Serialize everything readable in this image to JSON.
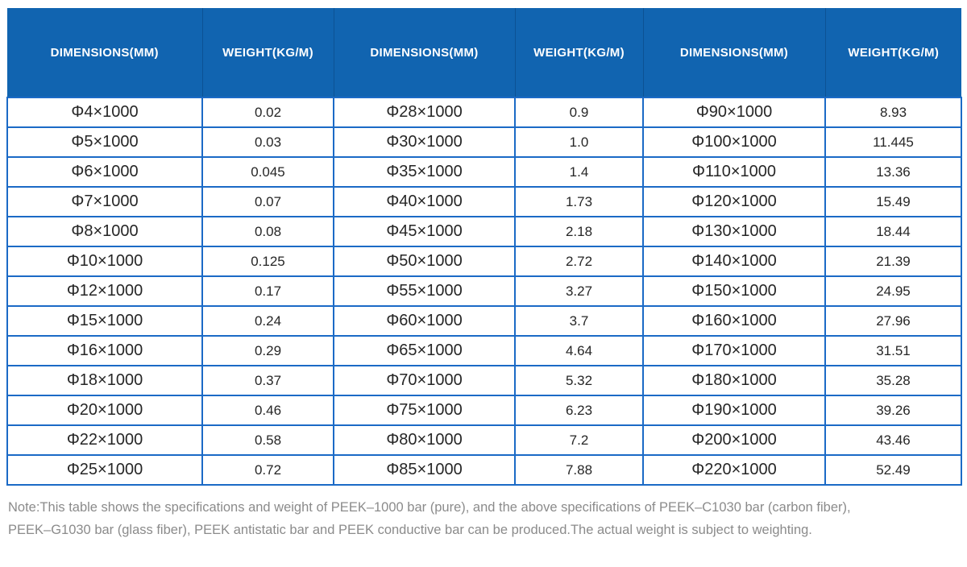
{
  "colors": {
    "header_bg": "#1164B0",
    "grid_border": "#1B6AC6",
    "header_separator": "#0C5294",
    "header_text": "#FFFFFF",
    "cell_text": "#262626",
    "note_text": "#8B8B8B"
  },
  "table": {
    "header_labels": [
      "DIMENSIONS(MM)",
      "WEIGHT(KG/M)",
      "DIMENSIONS(MM)",
      "WEIGHT(KG/M)",
      "DIMENSIONS(MM)",
      "WEIGHT(KG/M)"
    ],
    "rows": [
      [
        "Φ4×1000",
        "0.02",
        "Φ28×1000",
        "0.9",
        "Φ90×1000",
        "8.93"
      ],
      [
        "Φ5×1000",
        "0.03",
        "Φ30×1000",
        "1.0",
        "Φ100×1000",
        "11.445"
      ],
      [
        "Φ6×1000",
        "0.045",
        "Φ35×1000",
        "1.4",
        "Φ110×1000",
        "13.36"
      ],
      [
        "Φ7×1000",
        "0.07",
        "Φ40×1000",
        "1.73",
        "Φ120×1000",
        "15.49"
      ],
      [
        "Φ8×1000",
        "0.08",
        "Φ45×1000",
        "2.18",
        "Φ130×1000",
        "18.44"
      ],
      [
        "Φ10×1000",
        "0.125",
        "Φ50×1000",
        "2.72",
        "Φ140×1000",
        "21.39"
      ],
      [
        "Φ12×1000",
        "0.17",
        "Φ55×1000",
        "3.27",
        "Φ150×1000",
        "24.95"
      ],
      [
        "Φ15×1000",
        "0.24",
        "Φ60×1000",
        "3.7",
        "Φ160×1000",
        "27.96"
      ],
      [
        "Φ16×1000",
        "0.29",
        "Φ65×1000",
        "4.64",
        "Φ170×1000",
        "31.51"
      ],
      [
        "Φ18×1000",
        "0.37",
        "Φ70×1000",
        "5.32",
        "Φ180×1000",
        "35.28"
      ],
      [
        "Φ20×1000",
        "0.46",
        "Φ75×1000",
        "6.23",
        "Φ190×1000",
        "39.26"
      ],
      [
        "Φ22×1000",
        "0.58",
        "Φ80×1000",
        "7.2",
        "Φ200×1000",
        "43.46"
      ],
      [
        "Φ25×1000",
        "0.72",
        "Φ85×1000",
        "7.88",
        "Φ220×1000",
        "52.49"
      ]
    ]
  },
  "note": {
    "line1": "Note:This table shows the specifications and weight of PEEK–1000 bar (pure), and the above specifications of PEEK–C1030 bar (carbon fiber),",
    "line2": "PEEK–G1030 bar (glass fiber), PEEK antistatic bar and PEEK conductive bar can be produced.The actual weight is subject to weighting."
  }
}
